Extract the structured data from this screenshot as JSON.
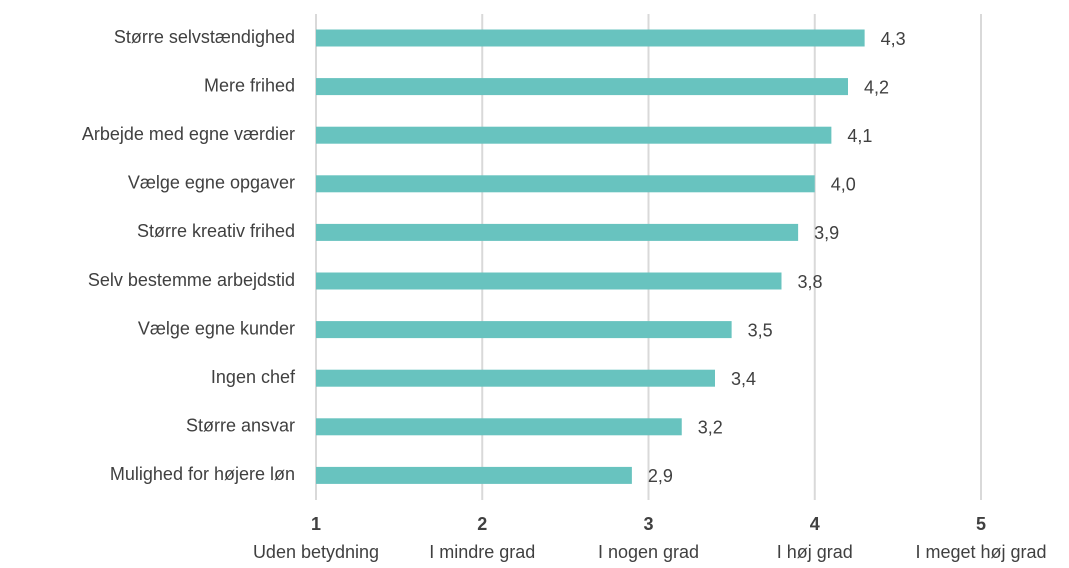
{
  "chart_data": {
    "type": "bar",
    "orientation": "horizontal",
    "categories": [
      "Større selvstændighed",
      "Mere frihed",
      "Arbejde med egne værdier",
      "Vælge egne opgaver",
      "Større kreativ frihed",
      "Selv bestemme arbejdstid",
      "Vælge egne kunder",
      "Ingen chef",
      "Større ansvar",
      "Mulighed for højere løn"
    ],
    "values": [
      4.3,
      4.2,
      4.1,
      4.0,
      3.9,
      3.8,
      3.5,
      3.4,
      3.2,
      2.9
    ],
    "value_labels": [
      "4,3",
      "4,2",
      "4,1",
      "4,0",
      "3,9",
      "3,8",
      "3,5",
      "3,4",
      "3,2",
      "2,9"
    ],
    "color": "#68c3bf",
    "xlim": [
      1,
      5
    ],
    "xticks": [
      1,
      2,
      3,
      4,
      5
    ],
    "xtick_descriptions": [
      "Uden betydning",
      "I mindre grad",
      "I nogen grad",
      "I høj grad",
      "I meget høj grad"
    ],
    "grid": true
  }
}
